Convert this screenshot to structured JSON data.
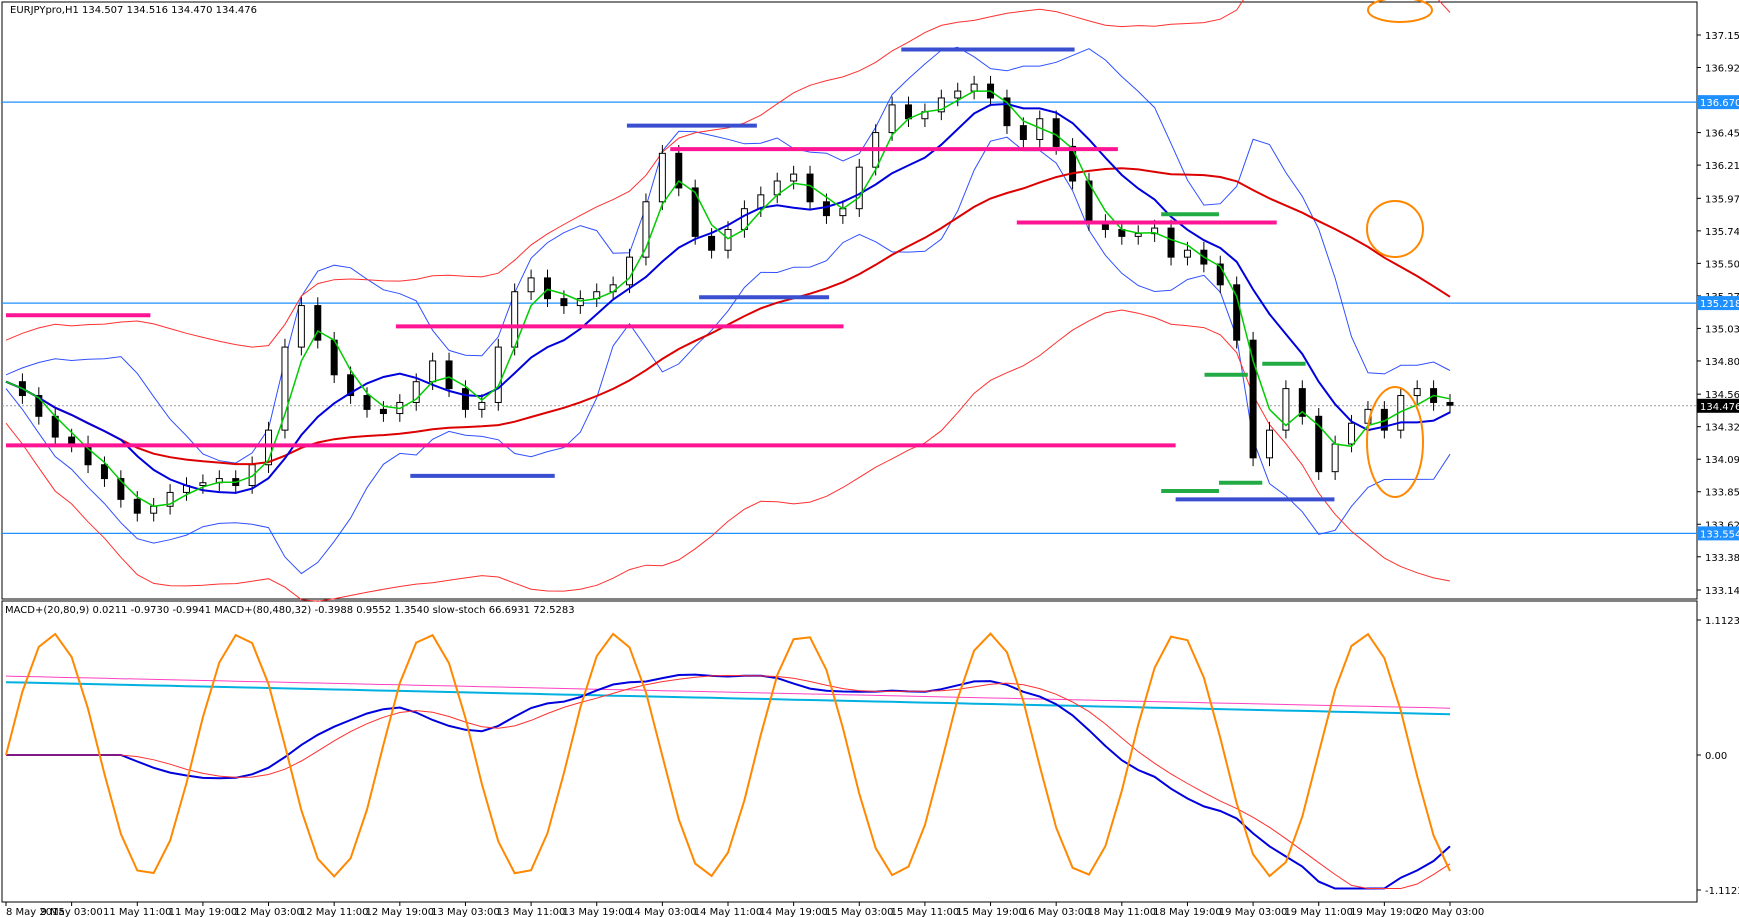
{
  "main_chart": {
    "info": "EURJPYpro,H1  134.507 134.516 134.470 134.476",
    "y_ticks": [
      "137.155",
      "136.920",
      "136.450",
      "136.215",
      "135.975",
      "135.740",
      "135.505",
      "135.270",
      "135.035",
      "134.800",
      "134.560",
      "134.325",
      "134.090",
      "133.855",
      "133.620",
      "133.385",
      "133.145"
    ],
    "tags": [
      {
        "value": "136.670",
        "bg": "#1e90ff",
        "fg": "#ffffff"
      },
      {
        "value": "135.218",
        "bg": "#1e90ff",
        "fg": "#ffffff"
      },
      {
        "value": "134.476",
        "bg": "#000000",
        "fg": "#ffffff"
      },
      {
        "value": "133.554",
        "bg": "#1e90ff",
        "fg": "#ffffff"
      }
    ]
  },
  "sub_chart": {
    "info": "MACD+(20,80,9) 0.0211 -0.9730 -0.9941  MACD+(80,480,32) -0.3988 0.9552 1.3540  slow-stoch 66.6931 72.5283",
    "y_ticks": [
      "1.1123",
      "0.00",
      "-1.1123"
    ]
  },
  "x_ticks": [
    "8 May 2015",
    "9 May 03:00",
    "11 May 11:00",
    "11 May 19:00",
    "12 May 03:00",
    "12 May 11:00",
    "12 May 19:00",
    "13 May 03:00",
    "13 May 11:00",
    "13 May 19:00",
    "14 May 03:00",
    "14 May 11:00",
    "14 May 19:00",
    "15 May 03:00",
    "15 May 11:00",
    "15 May 19:00",
    "16 May 03:00",
    "18 May 11:00",
    "18 May 19:00",
    "19 May 03:00",
    "19 May 11:00",
    "19 May 19:00",
    "20 May 03:00"
  ],
  "colors": {
    "grid_blue": "#1e90ff",
    "pink": "#ff1493",
    "dark_blue": "#3a4fd0",
    "green": "#22aa44",
    "ma_red": "#dd0000",
    "ma_blue": "#0000dd",
    "ma_green": "#00cc00",
    "orange": "#ff8800",
    "bb": "#3050ff"
  },
  "chart_data": {
    "type": "line",
    "title": "EURJPYpro,H1",
    "ohlc_last": {
      "open": 134.507,
      "high": 134.516,
      "low": 134.47,
      "close": 134.476
    },
    "price_range": [
      133.145,
      137.155
    ],
    "horizontal_levels": [
      136.67,
      135.218,
      133.554
    ],
    "series": [
      {
        "name": "close",
        "values": [
          134.65,
          134.55,
          134.4,
          134.25,
          134.2,
          134.05,
          133.95,
          133.8,
          133.7,
          133.75,
          133.85,
          133.9,
          133.92,
          133.95,
          133.9,
          134.05,
          134.3,
          134.9,
          135.2,
          134.95,
          134.7,
          134.55,
          134.45,
          134.42,
          134.5,
          134.65,
          134.8,
          134.6,
          134.45,
          134.5,
          134.9,
          135.3,
          135.4,
          135.25,
          135.2,
          135.25,
          135.3,
          135.35,
          135.55,
          135.95,
          136.3,
          136.05,
          135.7,
          135.6,
          135.75,
          135.9,
          136.0,
          136.1,
          136.15,
          135.95,
          135.85,
          135.9,
          136.2,
          136.45,
          136.65,
          136.55,
          136.6,
          136.7,
          136.75,
          136.8,
          136.7,
          136.5,
          136.4,
          136.55,
          136.35,
          136.1,
          135.8,
          135.75,
          135.7,
          135.72,
          135.76,
          135.55,
          135.6,
          135.5,
          135.35,
          134.95,
          134.1,
          134.3,
          134.6,
          134.4,
          134.0,
          134.2,
          134.35,
          134.45,
          134.3,
          134.55,
          134.6,
          134.5,
          134.48
        ]
      }
    ],
    "sub_range": [
      -1.1123,
      1.1123
    ]
  }
}
